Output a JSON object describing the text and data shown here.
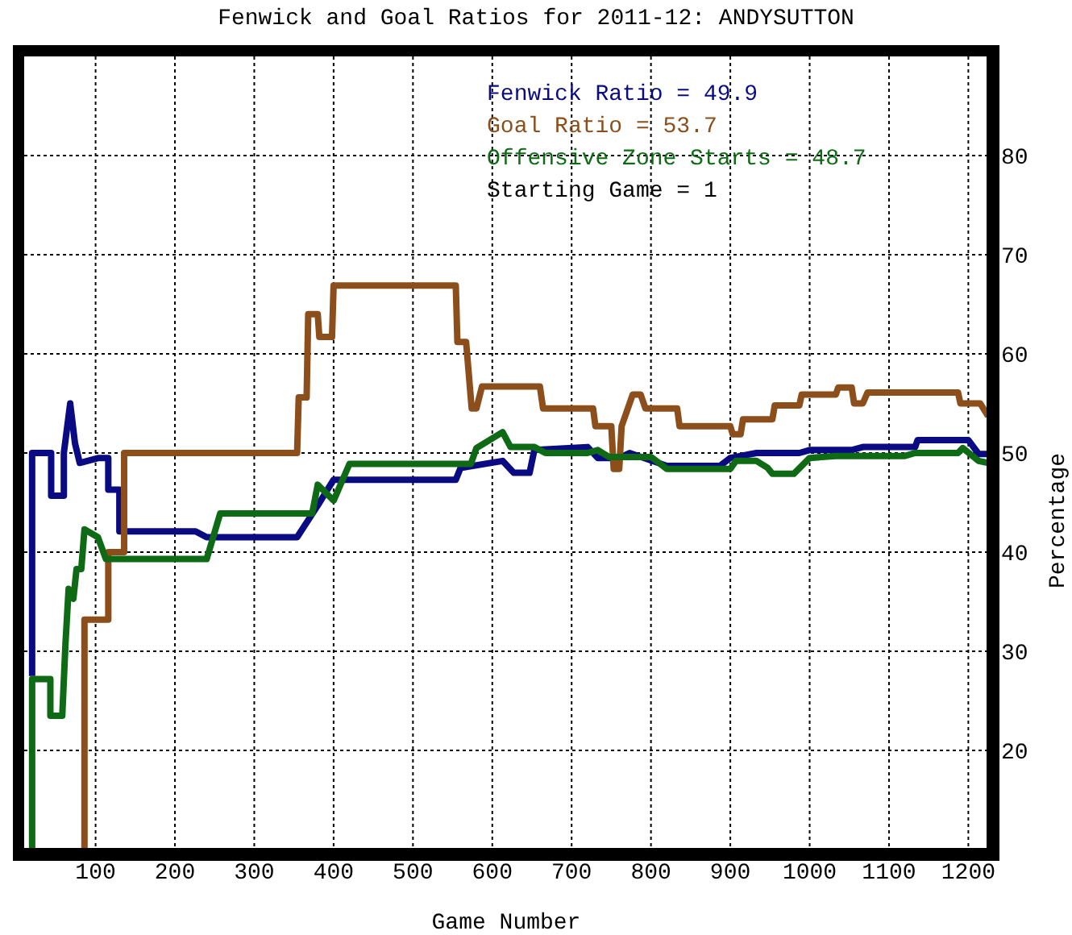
{
  "chart_data": {
    "type": "line",
    "title": "Fenwick and Goal Ratios for 2011-12: ANDYSUTTON",
    "xlabel": "Game Number",
    "ylabel": "Percentage",
    "xlim": [
      10,
      1225
    ],
    "xticks": [
      100,
      200,
      300,
      400,
      500,
      600,
      700,
      800,
      900,
      1000,
      1100,
      1200
    ],
    "ylim": [
      10,
      90
    ],
    "yticks": [
      20,
      30,
      40,
      50,
      60,
      70,
      80
    ],
    "grid": true,
    "legend": "top right",
    "annotations": [
      "Starting Game = 1"
    ],
    "series": [
      {
        "name": "Fenwick Ratio = 49.9",
        "color": "#0a0a82",
        "x": [
          20,
          20,
          44,
          44,
          60,
          60,
          68,
          74,
          80,
          104,
          116,
          116,
          130,
          130,
          226,
          240,
          354,
          380,
          400,
          554,
          560,
          613,
          627,
          647,
          653,
          720,
          733,
          760,
          773,
          820,
          887,
          900,
          933,
          987,
          1000,
          1053,
          1067,
          1133,
          1136,
          1200,
          1213,
          1225
        ],
        "values": [
          27.5,
          50,
          50,
          45.7,
          45.7,
          50,
          55,
          51,
          49,
          49.5,
          49.5,
          46.3,
          46.3,
          42.1,
          42.1,
          41.5,
          41.5,
          44.7,
          47.3,
          47.3,
          48.5,
          49.2,
          48,
          48,
          50.3,
          50.6,
          49.5,
          49.5,
          50,
          48.7,
          48.7,
          49.5,
          50,
          50,
          50.3,
          50.3,
          50.6,
          50.6,
          51.3,
          51.3,
          49.9,
          49.9
        ]
      },
      {
        "name": "Goal Ratio = 53.7",
        "color": "#8c4f1c",
        "x": [
          86,
          86,
          116,
          116,
          136,
          136,
          354,
          356,
          366,
          368,
          380,
          382,
          398,
          400,
          554,
          556,
          567,
          574,
          580,
          587,
          660,
          664,
          727,
          730,
          750,
          753,
          760,
          763,
          777,
          787,
          793,
          833,
          836,
          900,
          903,
          913,
          916,
          953,
          956,
          987,
          990,
          1033,
          1036,
          1053,
          1056,
          1067,
          1073,
          1187,
          1190,
          1215,
          1225
        ],
        "values": [
          10,
          33.2,
          33.2,
          40,
          40,
          50,
          50,
          55.6,
          55.6,
          64,
          64,
          61.7,
          61.7,
          66.9,
          66.9,
          61.2,
          61.2,
          54.5,
          54.5,
          56.7,
          56.7,
          54.5,
          54.5,
          52.7,
          52.7,
          48.4,
          48.4,
          52.7,
          55.9,
          55.9,
          54.5,
          54.5,
          52.7,
          52.7,
          51.9,
          51.9,
          53.4,
          53.4,
          54.8,
          54.8,
          55.9,
          55.9,
          56.6,
          56.6,
          55,
          55,
          56.1,
          56.1,
          55,
          55,
          53.7
        ]
      },
      {
        "name": "Offensive Zone Starts = 48.7",
        "color": "#0e6a14",
        "x": [
          20,
          20,
          43,
          43,
          58,
          62,
          66,
          72,
          76,
          82,
          86,
          103,
          113,
          240,
          257,
          373,
          380,
          400,
          420,
          573,
          580,
          613,
          623,
          653,
          667,
          720,
          733,
          747,
          800,
          820,
          900,
          907,
          933,
          947,
          953,
          980,
          1000,
          1033,
          1120,
          1133,
          1187,
          1193,
          1213,
          1225
        ],
        "values": [
          10,
          27.2,
          27.2,
          23.5,
          23.5,
          30.7,
          36.3,
          35.3,
          38.3,
          38.3,
          42.3,
          41.5,
          39.3,
          39.3,
          43.9,
          43.9,
          46.8,
          45.2,
          48.9,
          48.9,
          50.5,
          52.1,
          50.6,
          50.6,
          50,
          50,
          50.3,
          49.6,
          49.6,
          48.4,
          48.4,
          49.2,
          49.2,
          48.5,
          47.9,
          47.9,
          49.5,
          49.7,
          49.7,
          50,
          50,
          50.5,
          49.2,
          49
        ]
      }
    ]
  }
}
